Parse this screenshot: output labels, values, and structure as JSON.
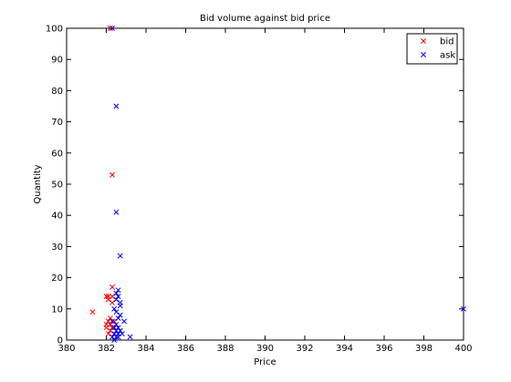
{
  "chart_data": {
    "type": "scatter",
    "title": "Bid volume against bid price",
    "xlabel": "Price",
    "ylabel": "Quantity",
    "xlim": [
      380,
      400
    ],
    "ylim": [
      0,
      100
    ],
    "xticks": [
      380,
      382,
      384,
      386,
      388,
      390,
      392,
      394,
      396,
      398,
      400
    ],
    "yticks": [
      0,
      10,
      20,
      30,
      40,
      50,
      60,
      70,
      80,
      90,
      100
    ],
    "grid": false,
    "legend": {
      "position": "top-right"
    },
    "series": [
      {
        "name": "bid",
        "color": "#ff0000",
        "marker": "x",
        "points": [
          [
            381.3,
            9
          ],
          [
            382.0,
            5
          ],
          [
            382.1,
            14
          ],
          [
            382.2,
            100
          ],
          [
            382.3,
            17
          ],
          [
            382.2,
            3
          ],
          [
            382.3,
            4
          ],
          [
            382.1,
            6
          ],
          [
            382.0,
            4
          ],
          [
            382.3,
            14
          ],
          [
            382.3,
            53
          ],
          [
            382.1,
            13
          ],
          [
            382.2,
            5
          ],
          [
            382.3,
            4
          ],
          [
            382.4,
            2
          ],
          [
            382.2,
            7
          ],
          [
            382.0,
            14
          ],
          [
            382.3,
            12
          ],
          [
            382.4,
            6
          ],
          [
            382.1,
            2
          ]
        ]
      },
      {
        "name": "ask",
        "color": "#0000ff",
        "marker": "x",
        "points": [
          [
            382.3,
            100
          ],
          [
            382.5,
            75
          ],
          [
            382.5,
            41
          ],
          [
            382.7,
            27
          ],
          [
            382.6,
            16
          ],
          [
            382.6,
            14
          ],
          [
            382.5,
            13
          ],
          [
            382.7,
            12
          ],
          [
            382.4,
            10
          ],
          [
            382.5,
            9
          ],
          [
            382.7,
            8
          ],
          [
            382.6,
            7
          ],
          [
            382.9,
            6
          ],
          [
            382.3,
            6
          ],
          [
            382.5,
            5
          ],
          [
            382.4,
            4
          ],
          [
            382.6,
            4
          ],
          [
            382.7,
            3
          ],
          [
            382.5,
            3
          ],
          [
            382.4,
            2
          ],
          [
            382.6,
            2
          ],
          [
            382.8,
            2
          ],
          [
            382.3,
            1
          ],
          [
            382.5,
            1
          ],
          [
            383.2,
            1
          ],
          [
            382.4,
            0
          ],
          [
            382.6,
            1
          ],
          [
            400.0,
            10
          ],
          [
            382.7,
            11
          ],
          [
            382.5,
            15
          ]
        ]
      }
    ]
  }
}
